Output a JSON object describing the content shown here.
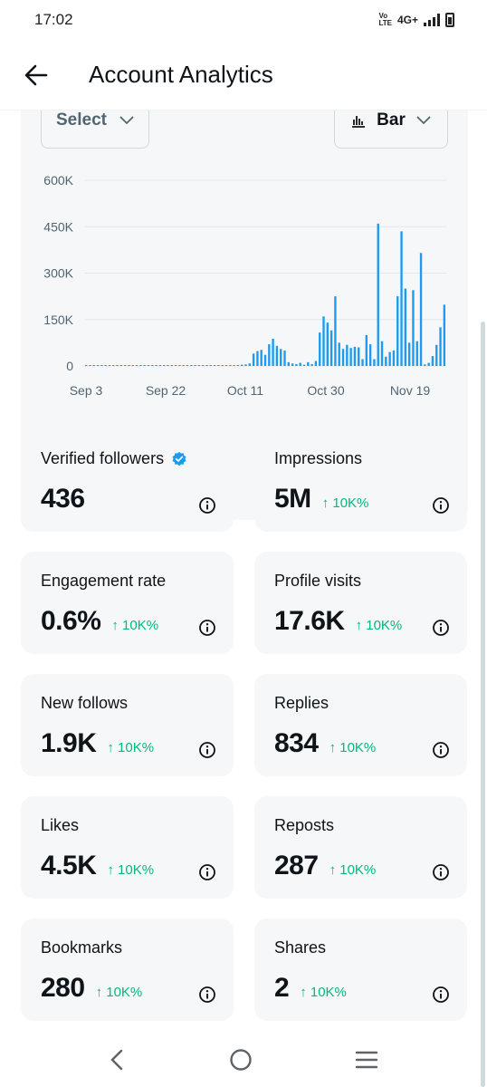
{
  "status": {
    "time": "17:02",
    "volte": "Vo\nLTE",
    "network": "4G+"
  },
  "header": {
    "title": "Account Analytics"
  },
  "controls": {
    "select_label": "Select",
    "chart_type_label": "Bar"
  },
  "chart_data": {
    "type": "bar",
    "title": "",
    "xlabel": "",
    "ylabel": "",
    "ylim": [
      0,
      600000
    ],
    "y_ticks": [
      "600K",
      "450K",
      "300K",
      "150K",
      "0"
    ],
    "y_tick_values": [
      600000,
      450000,
      300000,
      150000,
      0
    ],
    "x_ticks": [
      "Sep 3",
      "Sep 22",
      "Oct 11",
      "Oct 30",
      "Nov 19"
    ],
    "color": "#1d9bf0",
    "values": [
      2000,
      2000,
      2000,
      2000,
      2000,
      2000,
      2000,
      2000,
      2000,
      2000,
      2000,
      2000,
      2000,
      2000,
      2000,
      2000,
      2000,
      2000,
      2000,
      2000,
      2000,
      2000,
      2000,
      2000,
      2000,
      2000,
      2000,
      2000,
      2000,
      2000,
      2000,
      2000,
      2000,
      2000,
      2000,
      2000,
      2000,
      2000,
      3000,
      3000,
      4000,
      5000,
      8000,
      40000,
      48000,
      52000,
      36000,
      70000,
      88000,
      65000,
      55000,
      50000,
      12000,
      8000,
      6000,
      10000,
      4000,
      12000,
      6000,
      16000,
      108000,
      160000,
      140000,
      115000,
      225000,
      75000,
      55000,
      68000,
      58000,
      62000,
      60000,
      22000,
      100000,
      70000,
      22000,
      460000,
      80000,
      30000,
      45000,
      50000,
      225000,
      435000,
      250000,
      75000,
      245000,
      80000,
      365000,
      5000,
      10000,
      32000,
      68000,
      125000,
      198000
    ]
  },
  "stats": [
    {
      "label": "Verified followers",
      "value": "436",
      "change": "",
      "verified": true
    },
    {
      "label": "Impressions",
      "value": "5M",
      "change": "↑ 10K%"
    },
    {
      "label": "Engagement rate",
      "value": "0.6%",
      "change": "↑ 10K%"
    },
    {
      "label": "Profile visits",
      "value": "17.6K",
      "change": "↑ 10K%"
    },
    {
      "label": "New follows",
      "value": "1.9K",
      "change": "↑ 10K%"
    },
    {
      "label": "Replies",
      "value": "834",
      "change": "↑ 10K%"
    },
    {
      "label": "Likes",
      "value": "4.5K",
      "change": "↑ 10K%"
    },
    {
      "label": "Reposts",
      "value": "287",
      "change": "↑ 10K%"
    },
    {
      "label": "Bookmarks",
      "value": "280",
      "change": "↑ 10K%"
    },
    {
      "label": "Shares",
      "value": "2",
      "change": "↑ 10K%"
    }
  ],
  "icons": {
    "back": "arrow-left-icon",
    "verified": "verified-badge-icon",
    "info": "info-icon",
    "nav_back": "nav-back-icon",
    "nav_home": "nav-home-icon",
    "nav_menu": "nav-menu-icon"
  },
  "colors": {
    "accent": "#1d9bf0",
    "positive": "#00ba7c",
    "card_bg": "#f5f7f8"
  }
}
